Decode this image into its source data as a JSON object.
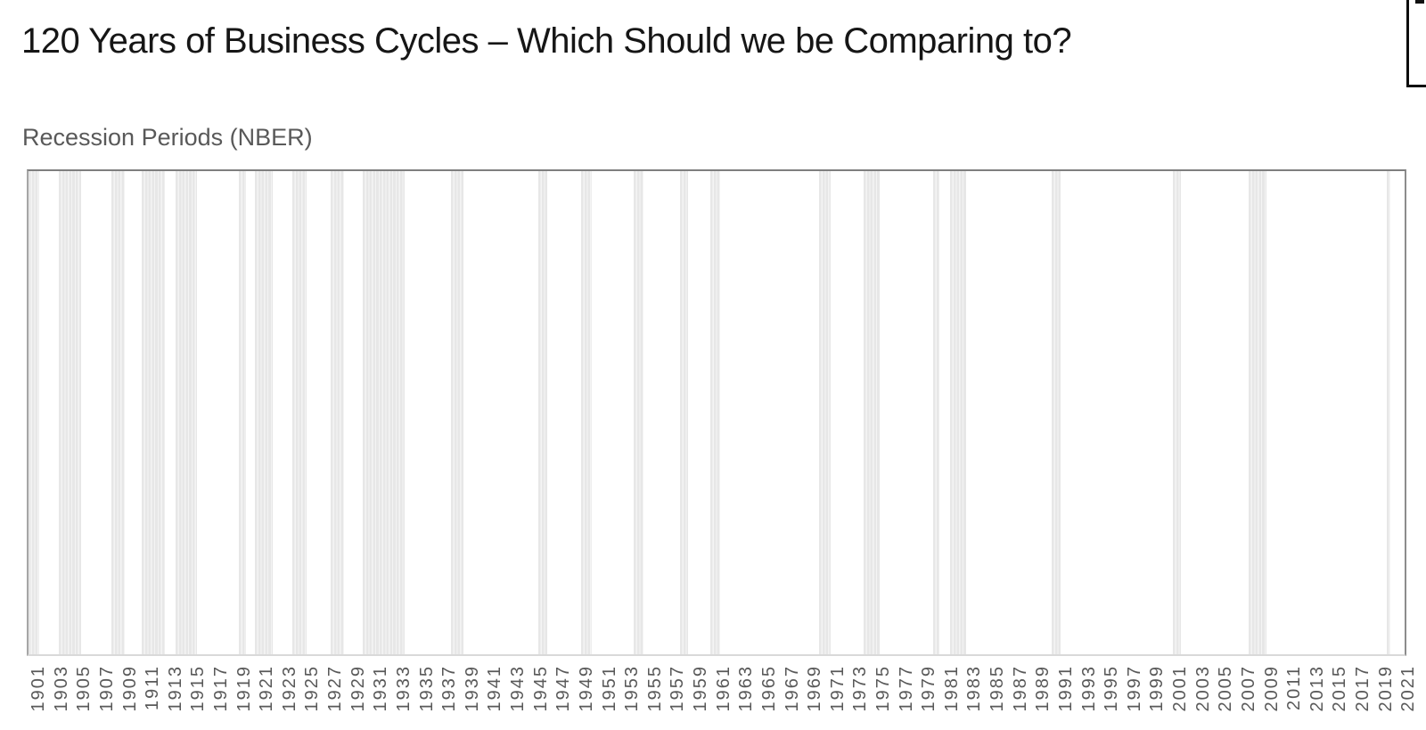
{
  "title": "120 Years of Business Cycles – Which Should we be Comparing to?",
  "colors": {
    "background": "#ffffff",
    "title_text": "#161616",
    "subtitle_text": "#595959",
    "axis_label_text": "#595959",
    "recession_bar": "#e7e7e7",
    "plot_border_top": "#7f7f7f",
    "plot_border_left": "#a6a6a6",
    "plot_border_right": "#8c8c8c",
    "plot_border_bottom": "#d9d9d9",
    "cutoff_box_border": "#0d0d0d"
  },
  "chart_data": {
    "type": "bar",
    "subtype": "recession-interval-timeline",
    "title": "Recession Periods (NBER)",
    "grid": false,
    "legend": false,
    "y_axis": {
      "visible": false
    },
    "x_axis": {
      "unit": "year",
      "range": [
        1900,
        2022
      ],
      "tick_interval": 2,
      "tick_label_rotation_deg": 90,
      "tick_labels": [
        "1901",
        "1903",
        "1905",
        "1907",
        "1909",
        "1911",
        "1913",
        "1915",
        "1917",
        "1919",
        "1921",
        "1923",
        "1925",
        "1927",
        "1929",
        "1931",
        "1933",
        "1935",
        "1937",
        "1939",
        "1941",
        "1943",
        "1945",
        "1947",
        "1949",
        "1951",
        "1953",
        "1955",
        "1957",
        "1959",
        "1961",
        "1963",
        "1965",
        "1967",
        "1969",
        "1971",
        "1973",
        "1975",
        "1977",
        "1979",
        "1981",
        "1983",
        "1985",
        "1987",
        "1989",
        "1991",
        "1993",
        "1995",
        "1997",
        "1999",
        "2001",
        "2003",
        "2005",
        "2007",
        "2009",
        "2011",
        "2013",
        "2015",
        "2017",
        "2019",
        "2021"
      ]
    },
    "recessions": [
      {
        "start": 1900.0,
        "end": 1900.92
      },
      {
        "start": 1902.67,
        "end": 1904.67
      },
      {
        "start": 1907.33,
        "end": 1908.5
      },
      {
        "start": 1910.0,
        "end": 1912.08
      },
      {
        "start": 1913.0,
        "end": 1914.92
      },
      {
        "start": 1918.58,
        "end": 1919.25
      },
      {
        "start": 1920.0,
        "end": 1921.58
      },
      {
        "start": 1923.33,
        "end": 1924.58
      },
      {
        "start": 1926.75,
        "end": 1927.92
      },
      {
        "start": 1929.58,
        "end": 1933.25
      },
      {
        "start": 1937.33,
        "end": 1938.5
      },
      {
        "start": 1945.08,
        "end": 1945.83
      },
      {
        "start": 1948.83,
        "end": 1949.83
      },
      {
        "start": 1953.5,
        "end": 1954.42
      },
      {
        "start": 1957.58,
        "end": 1958.33
      },
      {
        "start": 1960.25,
        "end": 1961.17
      },
      {
        "start": 1969.92,
        "end": 1970.92
      },
      {
        "start": 1973.83,
        "end": 1975.25
      },
      {
        "start": 1980.0,
        "end": 1980.58
      },
      {
        "start": 1981.5,
        "end": 1982.92
      },
      {
        "start": 1990.5,
        "end": 1991.25
      },
      {
        "start": 2001.17,
        "end": 2001.92
      },
      {
        "start": 2007.92,
        "end": 2009.5
      },
      {
        "start": 2020.08,
        "end": 2020.42
      }
    ]
  }
}
